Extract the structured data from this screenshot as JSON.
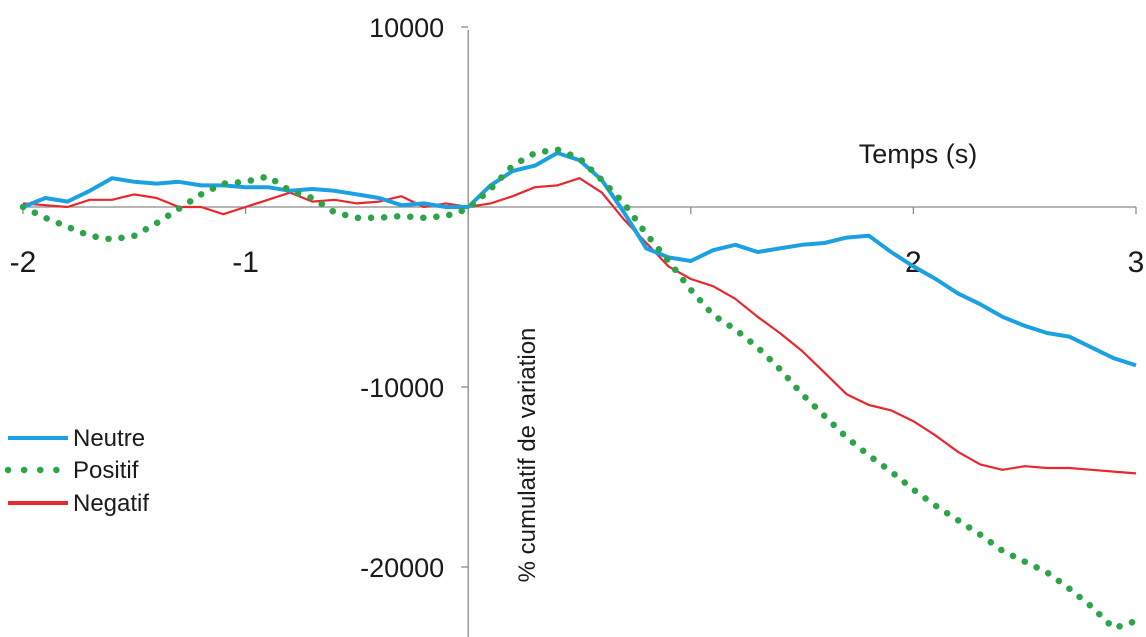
{
  "chart_data": {
    "type": "line",
    "xlabel": "Temps (s)",
    "ylabel": "% cumulatif de variation",
    "xlim": [
      -2,
      3
    ],
    "ylim": [
      -24000,
      10000
    ],
    "x_ticks": [
      -2,
      -1,
      0,
      1,
      2,
      3
    ],
    "x_tick_labels": [
      "-2",
      "-1",
      "",
      "",
      "2",
      "3"
    ],
    "y_ticks": [
      10000,
      0,
      -10000,
      -20000
    ],
    "y_tick_labels": [
      "10000",
      "",
      "-10000",
      "-20000"
    ],
    "legend_position": "left",
    "series": [
      {
        "name": "Neutre",
        "color": "#1ba1e2",
        "style": "solid",
        "x": [
          -2.0,
          -1.9,
          -1.8,
          -1.7,
          -1.6,
          -1.5,
          -1.4,
          -1.3,
          -1.2,
          -1.1,
          -1.0,
          -0.9,
          -0.8,
          -0.7,
          -0.6,
          -0.5,
          -0.4,
          -0.3,
          -0.2,
          -0.1,
          0.0,
          0.1,
          0.2,
          0.3,
          0.4,
          0.5,
          0.6,
          0.7,
          0.8,
          0.9,
          1.0,
          1.1,
          1.2,
          1.3,
          1.4,
          1.5,
          1.6,
          1.7,
          1.8,
          1.9,
          2.0,
          2.1,
          2.2,
          2.3,
          2.4,
          2.5,
          2.6,
          2.7,
          2.8,
          2.9,
          3.0
        ],
        "values": [
          0,
          500,
          300,
          900,
          1600,
          1400,
          1300,
          1400,
          1200,
          1200,
          1100,
          1100,
          900,
          1000,
          900,
          700,
          500,
          100,
          200,
          0,
          0,
          1200,
          2000,
          2300,
          3000,
          2600,
          1500,
          -300,
          -2300,
          -2800,
          -3000,
          -2400,
          -2100,
          -2500,
          -2300,
          -2100,
          -2000,
          -1700,
          -1600,
          -2500,
          -3300,
          -4000,
          -4800,
          -5400,
          -6100,
          -6600,
          -7000,
          -7200,
          -7800,
          -8400,
          -8800
        ]
      },
      {
        "name": "Positif",
        "color": "#2ea44a",
        "style": "dotted",
        "x": [
          -2.0,
          -1.9,
          -1.8,
          -1.7,
          -1.6,
          -1.5,
          -1.4,
          -1.3,
          -1.2,
          -1.1,
          -1.0,
          -0.9,
          -0.8,
          -0.7,
          -0.6,
          -0.5,
          -0.4,
          -0.3,
          -0.2,
          -0.1,
          0.0,
          0.1,
          0.2,
          0.3,
          0.4,
          0.5,
          0.6,
          0.7,
          0.8,
          0.9,
          1.0,
          1.1,
          1.2,
          1.3,
          1.4,
          1.5,
          1.6,
          1.7,
          1.8,
          1.9,
          2.0,
          2.1,
          2.2,
          2.3,
          2.4,
          2.5,
          2.6,
          2.7,
          2.8,
          2.9,
          3.0
        ],
        "values": [
          0,
          -600,
          -1100,
          -1600,
          -1800,
          -1600,
          -900,
          -100,
          700,
          1300,
          1400,
          1700,
          900,
          500,
          -300,
          -600,
          -600,
          -500,
          -600,
          -500,
          -100,
          1000,
          2300,
          3000,
          3200,
          2700,
          1500,
          200,
          -1500,
          -3000,
          -4600,
          -6000,
          -6800,
          -7800,
          -9000,
          -10400,
          -11600,
          -12800,
          -13800,
          -14700,
          -15700,
          -16600,
          -17400,
          -18200,
          -19100,
          -19700,
          -20300,
          -21200,
          -22200,
          -23400,
          -23000
        ]
      },
      {
        "name": "Negatif",
        "color": "#e8282e",
        "style": "solid",
        "x": [
          -2.0,
          -1.9,
          -1.8,
          -1.7,
          -1.6,
          -1.5,
          -1.4,
          -1.3,
          -1.2,
          -1.1,
          -1.0,
          -0.9,
          -0.8,
          -0.7,
          -0.6,
          -0.5,
          -0.4,
          -0.3,
          -0.2,
          -0.1,
          0.0,
          0.1,
          0.2,
          0.3,
          0.4,
          0.5,
          0.6,
          0.7,
          0.8,
          0.9,
          1.0,
          1.1,
          1.2,
          1.3,
          1.4,
          1.5,
          1.6,
          1.7,
          1.8,
          1.9,
          2.0,
          2.1,
          2.2,
          2.3,
          2.4,
          2.5,
          2.6,
          2.7,
          2.8,
          2.9,
          3.0
        ],
        "values": [
          200,
          100,
          0,
          400,
          400,
          700,
          500,
          0,
          0,
          -400,
          0,
          400,
          800,
          300,
          400,
          200,
          300,
          600,
          0,
          200,
          0,
          200,
          600,
          1100,
          1200,
          1600,
          800,
          -700,
          -2000,
          -3300,
          -4000,
          -4400,
          -5100,
          -6100,
          -7000,
          -8000,
          -9200,
          -10400,
          -11000,
          -11300,
          -11900,
          -12700,
          -13600,
          -14300,
          -14600,
          -14400,
          -14500,
          -14500,
          -14600,
          -14700,
          -14800
        ]
      }
    ]
  }
}
